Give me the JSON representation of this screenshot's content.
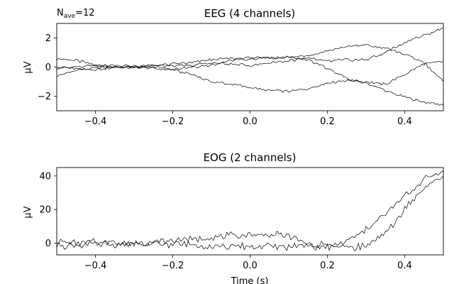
{
  "figure": {
    "annotation": {
      "main": "N",
      "sub": "ave",
      "rest": "=12"
    }
  },
  "colors": {
    "trace": "#000000",
    "axis": "#000000",
    "background": "#ffffff"
  },
  "chart_data": [
    {
      "type": "line",
      "title": "EEG (4 channels)",
      "xlabel": "",
      "ylabel": "µV",
      "xlim": [
        -0.5,
        0.5
      ],
      "ylim": [
        -3,
        3
      ],
      "xticks": [
        -0.4,
        -0.2,
        0.0,
        0.2,
        0.4
      ],
      "xtick_labels": [
        "−0.4",
        "−0.2",
        "0.0",
        "0.2",
        "0.4"
      ],
      "yticks": [
        -2,
        0,
        2
      ],
      "ytick_labels": [
        "−2",
        "0",
        "2"
      ],
      "grid": false,
      "x": [
        -0.5,
        -0.45,
        -0.4,
        -0.35,
        -0.3,
        -0.25,
        -0.2,
        -0.15,
        -0.1,
        -0.05,
        0.0,
        0.05,
        0.1,
        0.15,
        0.2,
        0.25,
        0.3,
        0.35,
        0.4,
        0.45,
        0.5
      ],
      "series": [
        {
          "values": [
            0.6,
            0.45,
            0.15,
            0.0,
            -0.05,
            0.05,
            -0.1,
            0.0,
            0.15,
            0.45,
            0.55,
            0.65,
            0.7,
            0.5,
            -0.1,
            -0.8,
            -1.1,
            -1.6,
            -2.1,
            -2.4,
            -2.6
          ]
        },
        {
          "values": [
            -0.6,
            -0.2,
            -0.05,
            0.0,
            0.05,
            -0.1,
            -0.2,
            -0.5,
            -1.0,
            -1.15,
            -1.4,
            -1.6,
            -1.65,
            -1.5,
            -1.1,
            -0.9,
            -1.0,
            -1.2,
            -0.5,
            0.2,
            0.4
          ]
        },
        {
          "values": [
            -0.05,
            0.0,
            0.1,
            0.15,
            0.05,
            0.1,
            0.2,
            0.3,
            0.5,
            0.6,
            0.65,
            0.6,
            0.65,
            0.8,
            1.1,
            1.4,
            1.5,
            1.3,
            0.9,
            0.3,
            -1.0
          ]
        },
        {
          "values": [
            0.0,
            -0.1,
            -0.15,
            -0.05,
            0.0,
            0.1,
            0.1,
            0.1,
            0.3,
            0.2,
            0.1,
            0.3,
            0.45,
            0.6,
            0.4,
            0.5,
            0.5,
            1.0,
            1.7,
            2.2,
            2.65
          ]
        }
      ]
    },
    {
      "type": "line",
      "title": "EOG (2 channels)",
      "xlabel": "Time (s)",
      "ylabel": "µV",
      "xlim": [
        -0.5,
        0.5
      ],
      "ylim": [
        -7,
        45
      ],
      "xticks": [
        -0.4,
        -0.2,
        0.0,
        0.2,
        0.4
      ],
      "xtick_labels": [
        "−0.4",
        "−0.2",
        "0.0",
        "0.2",
        "0.4"
      ],
      "yticks": [
        0,
        20,
        40
      ],
      "ytick_labels": [
        "0",
        "20",
        "40"
      ],
      "grid": false,
      "x": [
        -0.5,
        -0.45,
        -0.4,
        -0.35,
        -0.3,
        -0.25,
        -0.2,
        -0.15,
        -0.1,
        -0.05,
        0.0,
        0.05,
        0.1,
        0.15,
        0.2,
        0.25,
        0.3,
        0.35,
        0.4,
        0.45,
        0.5
      ],
      "series": [
        {
          "values": [
            0.5,
            0.0,
            0.5,
            -0.5,
            0.0,
            0.5,
            1.5,
            2.5,
            3.5,
            4.5,
            5.0,
            5.5,
            4.5,
            -2.0,
            -2.5,
            1.0,
            8.0,
            17.0,
            28.0,
            38.0,
            43.0
          ]
        },
        {
          "values": [
            -1.5,
            -1.0,
            -0.5,
            0.0,
            -1.0,
            -0.5,
            -0.5,
            -1.0,
            -1.5,
            -2.0,
            -2.0,
            -2.0,
            -2.0,
            -1.5,
            -1.0,
            -2.5,
            -1.5,
            5.0,
            20.0,
            33.0,
            40.0
          ]
        }
      ]
    }
  ]
}
